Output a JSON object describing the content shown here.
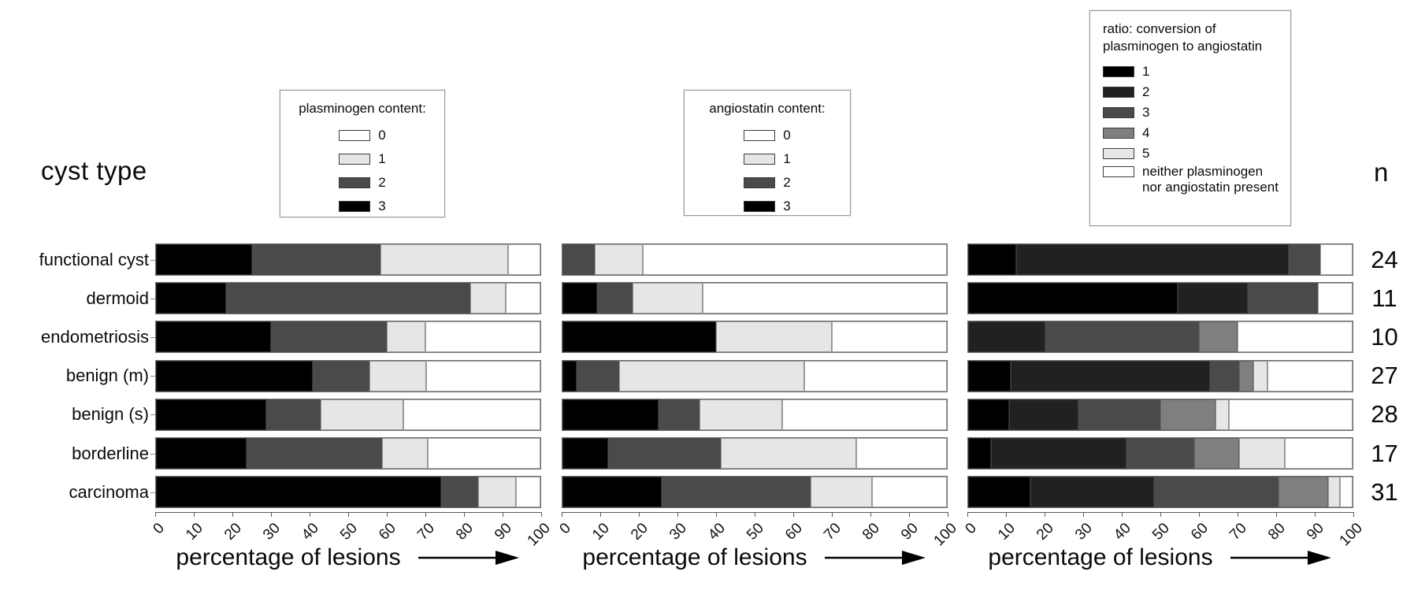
{
  "header": {
    "cyst_type_label": "cyst type",
    "n_label": "n"
  },
  "n_column": [
    24,
    11,
    10,
    27,
    28,
    17,
    31
  ],
  "axis": {
    "ticks": [
      "0",
      "10",
      "20",
      "30",
      "40",
      "50",
      "60",
      "70",
      "80",
      "90",
      "100"
    ],
    "xlabel": "percentage of lesions",
    "xlim": [
      0,
      100
    ]
  },
  "colors": {
    "black": "#000000",
    "very_dark": "#212121",
    "dark_gray": "#4a4a4a",
    "medium_gray": "#7f7f7f",
    "light_gray": "#e6e6e6",
    "white": "#ffffff"
  },
  "chart_data": [
    {
      "type": "bar",
      "orientation": "horizontal-stacked",
      "legend_title": "plasminogen content:",
      "legend_position": "above",
      "xlabel": "percentage of lesions",
      "xlim": [
        0,
        100
      ],
      "categories": [
        "functional cyst",
        "dermoid",
        "endometriosis",
        "benign (m)",
        "benign (s)",
        "borderline",
        "carcinoma"
      ],
      "n": [
        24,
        11,
        10,
        27,
        28,
        17,
        31
      ],
      "legend": [
        {
          "label": "0",
          "color": "#ffffff"
        },
        {
          "label": "1",
          "color": "#e6e6e6"
        },
        {
          "label": "2",
          "color": "#4a4a4a"
        },
        {
          "label": "3",
          "color": "#000000"
        }
      ],
      "series": [
        {
          "key": "3",
          "color": "#000000",
          "values": [
            25.0,
            18.2,
            30.0,
            40.7,
            28.6,
            23.5,
            74.2
          ]
        },
        {
          "key": "2",
          "color": "#4a4a4a",
          "values": [
            33.3,
            63.6,
            30.0,
            14.8,
            14.3,
            35.3,
            9.7
          ]
        },
        {
          "key": "1",
          "color": "#e6e6e6",
          "values": [
            33.3,
            9.1,
            10.0,
            14.8,
            21.4,
            11.8,
            9.7
          ]
        },
        {
          "key": "0",
          "color": "#ffffff",
          "values": [
            8.4,
            9.1,
            30.0,
            29.7,
            35.7,
            29.4,
            6.4
          ]
        }
      ]
    },
    {
      "type": "bar",
      "orientation": "horizontal-stacked",
      "legend_title": "angiostatin content:",
      "legend_position": "above",
      "xlabel": "percentage of lesions",
      "xlim": [
        0,
        100
      ],
      "categories": [
        "functional cyst",
        "dermoid",
        "endometriosis",
        "benign (m)",
        "benign (s)",
        "borderline",
        "carcinoma"
      ],
      "n": [
        24,
        11,
        10,
        27,
        28,
        17,
        31
      ],
      "legend": [
        {
          "label": "0",
          "color": "#ffffff"
        },
        {
          "label": "1",
          "color": "#e6e6e6"
        },
        {
          "label": "2",
          "color": "#4a4a4a"
        },
        {
          "label": "3",
          "color": "#000000"
        }
      ],
      "series": [
        {
          "key": "3",
          "color": "#000000",
          "values": [
            0,
            9.1,
            40.0,
            3.7,
            25.0,
            11.8,
            25.8
          ]
        },
        {
          "key": "2",
          "color": "#4a4a4a",
          "values": [
            8.3,
            9.1,
            0,
            11.1,
            10.7,
            29.4,
            38.7
          ]
        },
        {
          "key": "1",
          "color": "#e6e6e6",
          "values": [
            12.5,
            18.2,
            30.0,
            48.1,
            21.4,
            35.3,
            16.1
          ]
        },
        {
          "key": "0",
          "color": "#ffffff",
          "values": [
            79.2,
            63.6,
            30.0,
            37.1,
            42.9,
            23.5,
            19.4
          ]
        }
      ]
    },
    {
      "type": "bar",
      "orientation": "horizontal-stacked",
      "legend_title": "ratio: conversion of\nplasminogen to angiostatin",
      "legend_position": "above",
      "xlabel": "percentage of lesions",
      "xlim": [
        0,
        100
      ],
      "categories": [
        "functional cyst",
        "dermoid",
        "endometriosis",
        "benign (m)",
        "benign (s)",
        "borderline",
        "carcinoma"
      ],
      "n": [
        24,
        11,
        10,
        27,
        28,
        17,
        31
      ],
      "legend": [
        {
          "label": "1",
          "color": "#000000"
        },
        {
          "label": "2",
          "color": "#212121"
        },
        {
          "label": "3",
          "color": "#4a4a4a"
        },
        {
          "label": "4",
          "color": "#7f7f7f"
        },
        {
          "label": "5",
          "color": "#e6e6e6"
        },
        {
          "label": "neither plasminogen\nnor angiostatin present",
          "color": "#ffffff"
        }
      ],
      "series": [
        {
          "key": "1",
          "color": "#000000",
          "values": [
            12.5,
            54.5,
            0,
            11.1,
            10.7,
            5.9,
            16.1
          ]
        },
        {
          "key": "2",
          "color": "#212121",
          "values": [
            70.8,
            18.2,
            20.0,
            51.9,
            17.9,
            35.3,
            32.3
          ]
        },
        {
          "key": "3",
          "color": "#4a4a4a",
          "values": [
            8.3,
            18.2,
            40.0,
            7.4,
            21.4,
            17.6,
            32.3
          ]
        },
        {
          "key": "4",
          "color": "#7f7f7f",
          "values": [
            0,
            0,
            10.0,
            3.7,
            14.3,
            11.8,
            12.9
          ]
        },
        {
          "key": "5",
          "color": "#e6e6e6",
          "values": [
            0,
            0,
            0,
            3.7,
            3.6,
            11.8,
            3.2
          ]
        },
        {
          "key": "neither",
          "color": "#ffffff",
          "values": [
            8.4,
            9.1,
            30.0,
            22.2,
            32.1,
            17.6,
            3.2
          ]
        }
      ]
    }
  ]
}
